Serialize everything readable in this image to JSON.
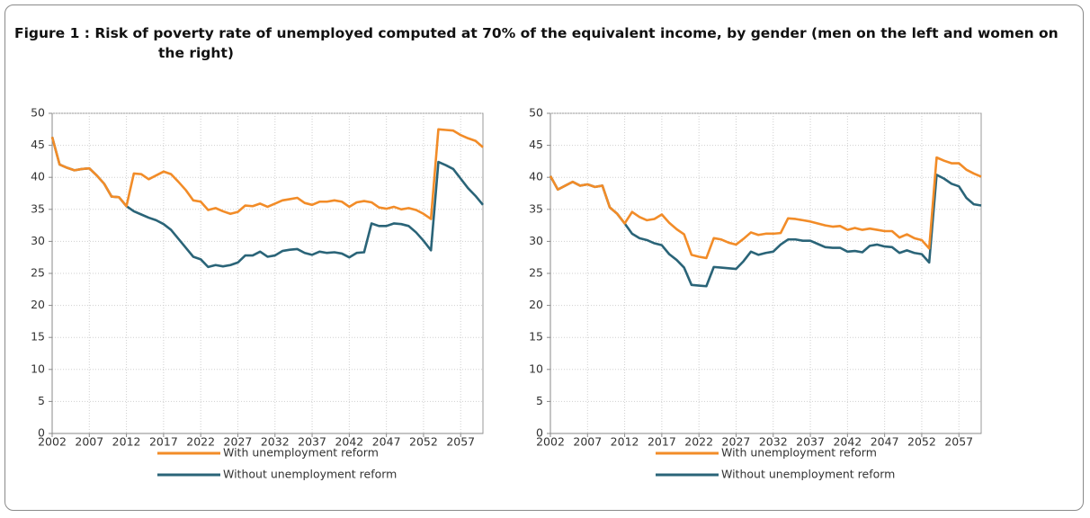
{
  "title": "Figure 1 : Risk of poverty rate of unemployed computed at 70% of the equivalent income, by gender (men on the left and women on the right)",
  "chart_data": [
    {
      "type": "line",
      "x": [
        2002,
        2003,
        2004,
        2005,
        2006,
        2007,
        2008,
        2009,
        2010,
        2011,
        2012,
        2013,
        2014,
        2015,
        2016,
        2017,
        2018,
        2019,
        2020,
        2021,
        2022,
        2023,
        2024,
        2025,
        2026,
        2027,
        2028,
        2029,
        2030,
        2031,
        2032,
        2033,
        2034,
        2035,
        2036,
        2037,
        2038,
        2039,
        2040,
        2041,
        2042,
        2043,
        2044,
        2045,
        2046,
        2047,
        2048,
        2049,
        2050,
        2051,
        2052,
        2053,
        2054,
        2055,
        2056,
        2057,
        2058,
        2059,
        2060
      ],
      "xlim": [
        2002,
        2060
      ],
      "xticks": [
        2002,
        2007,
        2012,
        2017,
        2022,
        2027,
        2032,
        2037,
        2042,
        2047,
        2052,
        2057
      ],
      "ylim": [
        0,
        50
      ],
      "yticks": [
        0,
        5,
        10,
        15,
        20,
        25,
        30,
        35,
        40,
        45,
        50
      ],
      "grid": true,
      "series": [
        {
          "name": "With unemployment reform",
          "color": "#f28c28",
          "values": [
            46.3,
            42,
            41.5,
            41.1,
            41.3,
            41.4,
            40.3,
            39,
            37,
            36.9,
            35.5,
            40.6,
            40.5,
            39.7,
            40.3,
            40.9,
            40.5,
            39.3,
            38,
            36.4,
            36.2,
            34.9,
            35.2,
            34.7,
            34.3,
            34.6,
            35.6,
            35.5,
            35.9,
            35.4,
            35.9,
            36.4,
            36.6,
            36.8,
            36,
            35.7,
            36.2,
            36.2,
            36.4,
            36.2,
            35.4,
            36.1,
            36.3,
            36.1,
            35.3,
            35.1,
            35.4,
            35,
            35.2,
            34.9,
            34.3,
            33.5,
            47.5,
            47.4,
            47.3,
            46.6,
            46.1,
            45.7,
            44.7
          ]
        },
        {
          "name": "Without unemployment reform",
          "color": "#2a6478",
          "values": [
            46.3,
            42,
            41.5,
            41.1,
            41.3,
            41.4,
            40.3,
            39,
            37,
            36.9,
            35.5,
            34.7,
            34.2,
            33.7,
            33.3,
            32.7,
            31.8,
            30.4,
            29,
            27.6,
            27.2,
            26,
            26.3,
            26.1,
            26.3,
            26.7,
            27.8,
            27.8,
            28.4,
            27.6,
            27.8,
            28.5,
            28.7,
            28.8,
            28.2,
            27.9,
            28.4,
            28.2,
            28.3,
            28.1,
            27.5,
            28.2,
            28.3,
            32.8,
            32.4,
            32.4,
            32.8,
            32.7,
            32.4,
            31.4,
            30.1,
            28.6,
            42.4,
            41.9,
            41.3,
            39.8,
            38.3,
            37.1,
            35.7
          ]
        }
      ]
    },
    {
      "type": "line",
      "x": [
        2002,
        2003,
        2004,
        2005,
        2006,
        2007,
        2008,
        2009,
        2010,
        2011,
        2012,
        2013,
        2014,
        2015,
        2016,
        2017,
        2018,
        2019,
        2020,
        2021,
        2022,
        2023,
        2024,
        2025,
        2026,
        2027,
        2028,
        2029,
        2030,
        2031,
        2032,
        2033,
        2034,
        2035,
        2036,
        2037,
        2038,
        2039,
        2040,
        2041,
        2042,
        2043,
        2044,
        2045,
        2046,
        2047,
        2048,
        2049,
        2050,
        2051,
        2052,
        2053,
        2054,
        2055,
        2056,
        2057,
        2058,
        2059,
        2060
      ],
      "xlim": [
        2002,
        2060
      ],
      "xticks": [
        2002,
        2007,
        2012,
        2017,
        2022,
        2027,
        2032,
        2037,
        2042,
        2047,
        2052,
        2057
      ],
      "ylim": [
        0,
        50
      ],
      "yticks": [
        0,
        5,
        10,
        15,
        20,
        25,
        30,
        35,
        40,
        45,
        50
      ],
      "grid": true,
      "series": [
        {
          "name": "With unemployment reform",
          "color": "#f28c28",
          "values": [
            40.2,
            38.1,
            38.7,
            39.3,
            38.7,
            38.9,
            38.5,
            38.7,
            35.3,
            34.3,
            32.8,
            34.6,
            33.8,
            33.3,
            33.5,
            34.2,
            32.9,
            31.9,
            31.1,
            27.9,
            27.6,
            27.4,
            30.5,
            30.3,
            29.8,
            29.5,
            30.4,
            31.4,
            31,
            31.2,
            31.2,
            31.3,
            33.6,
            33.5,
            33.3,
            33.1,
            32.8,
            32.5,
            32.3,
            32.4,
            31.8,
            32.1,
            31.8,
            32,
            31.8,
            31.6,
            31.6,
            30.6,
            31.1,
            30.5,
            30.2,
            28.9,
            43.1,
            42.6,
            42.2,
            42.2,
            41.2,
            40.6,
            40.1
          ]
        },
        {
          "name": "Without unemployment reform",
          "color": "#2a6478",
          "values": [
            40.2,
            38.1,
            38.7,
            39.3,
            38.7,
            38.9,
            38.5,
            38.7,
            35.3,
            34.3,
            32.8,
            31.2,
            30.5,
            30.2,
            29.7,
            29.4,
            28,
            27.1,
            25.9,
            23.2,
            23.1,
            23,
            26,
            25.9,
            25.8,
            25.7,
            26.9,
            28.4,
            27.9,
            28.2,
            28.4,
            29.5,
            30.3,
            30.3,
            30.1,
            30.1,
            29.6,
            29.1,
            29,
            29,
            28.4,
            28.5,
            28.3,
            29.3,
            29.5,
            29.2,
            29.1,
            28.2,
            28.6,
            28.2,
            28,
            26.7,
            40.4,
            39.8,
            39,
            38.6,
            36.8,
            35.8,
            35.6
          ]
        }
      ]
    }
  ]
}
